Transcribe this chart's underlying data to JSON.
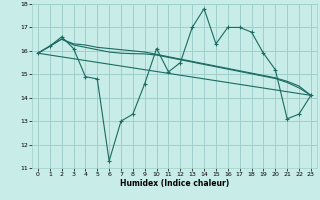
{
  "xlabel": "Humidex (Indice chaleur)",
  "ylabel": "",
  "xlim": [
    -0.5,
    23.5
  ],
  "ylim": [
    11,
    18
  ],
  "yticks": [
    11,
    12,
    13,
    14,
    15,
    16,
    17,
    18
  ],
  "xticks": [
    0,
    1,
    2,
    3,
    4,
    5,
    6,
    7,
    8,
    9,
    10,
    11,
    12,
    13,
    14,
    15,
    16,
    17,
    18,
    19,
    20,
    21,
    22,
    23
  ],
  "bg_color": "#c8ece8",
  "grid_color": "#a0d0cc",
  "line_color": "#1a6b60",
  "line1_x": [
    0,
    1,
    2,
    3,
    4,
    5,
    6,
    7,
    8,
    9,
    10,
    11,
    12,
    13,
    14,
    15,
    16,
    17,
    18,
    19,
    20,
    21,
    22,
    23
  ],
  "line1_y": [
    15.9,
    16.2,
    16.6,
    16.1,
    14.9,
    14.8,
    11.3,
    13.0,
    13.3,
    14.6,
    16.1,
    15.1,
    15.5,
    17.0,
    17.8,
    16.3,
    17.0,
    17.0,
    16.8,
    15.9,
    15.2,
    13.1,
    13.3,
    14.1
  ],
  "line2_x": [
    0,
    1,
    2,
    3,
    4,
    5,
    6,
    7,
    8,
    9,
    10,
    11,
    12,
    13,
    14,
    15,
    16,
    17,
    18,
    19,
    20,
    21,
    22,
    23
  ],
  "line2_y": [
    15.9,
    16.2,
    16.5,
    16.3,
    16.25,
    16.15,
    16.1,
    16.05,
    16.0,
    15.95,
    15.85,
    15.75,
    15.65,
    15.55,
    15.45,
    15.35,
    15.25,
    15.15,
    15.05,
    14.95,
    14.85,
    14.7,
    14.5,
    14.1
  ],
  "line3_x": [
    0,
    1,
    2,
    3,
    4,
    5,
    6,
    7,
    8,
    9,
    10,
    11,
    12,
    13,
    14,
    15,
    16,
    17,
    18,
    19,
    20,
    21,
    22,
    23
  ],
  "line3_y": [
    15.9,
    16.2,
    16.5,
    16.25,
    16.15,
    16.05,
    15.95,
    15.9,
    15.88,
    15.87,
    15.82,
    15.72,
    15.62,
    15.52,
    15.42,
    15.32,
    15.22,
    15.12,
    15.02,
    14.92,
    14.82,
    14.65,
    14.42,
    14.1
  ],
  "line4_x": [
    0,
    23
  ],
  "line4_y": [
    15.9,
    14.1
  ]
}
